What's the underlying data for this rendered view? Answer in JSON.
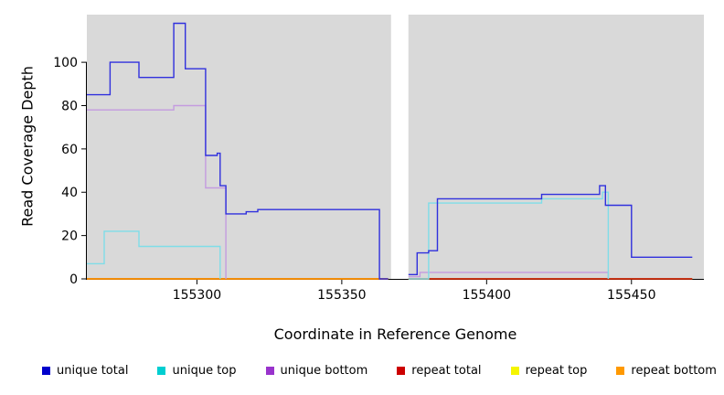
{
  "figure": {
    "bg": "#FFFFFF",
    "panel_bg": "#D9D9D9"
  },
  "chart_data": {
    "type": "line",
    "subtype": "step-coverage-plot",
    "title": "",
    "xlabel": "Coordinate in Reference Genome",
    "ylabel": "Read Coverage Depth",
    "xlim": [
      155262,
      155475
    ],
    "ylim": [
      0,
      122
    ],
    "x_ticks": [
      155300,
      155350,
      155400,
      155450
    ],
    "y_ticks": [
      0,
      20,
      40,
      60,
      80,
      100
    ],
    "grid": false,
    "legend_position": "bottom",
    "gap_region": {
      "from": 155367,
      "to": 155373,
      "note": "white vertical band with no coverage data"
    },
    "series": [
      {
        "name": "repeat top",
        "color": "#F2F200",
        "runs": [
          [
            155262,
            155366,
            0
          ],
          [
            155373,
            155471,
            0
          ]
        ]
      },
      {
        "name": "repeat total",
        "color": "#C00000",
        "runs": [
          [
            155262,
            155366,
            0
          ],
          [
            155373,
            155471,
            0
          ]
        ]
      },
      {
        "name": "repeat bottom",
        "color": "#FF9900",
        "runs": [
          [
            155262,
            155366,
            0
          ]
        ]
      },
      {
        "name": "unique bottom",
        "color": "#C49BE0",
        "runs": [
          [
            155262,
            155292,
            78
          ],
          [
            155292,
            155303,
            80
          ],
          [
            155303,
            155310,
            42
          ],
          [
            155310,
            155310,
            0
          ],
          [
            155373,
            155377,
            1
          ],
          [
            155377,
            155442,
            3
          ],
          [
            155442,
            155442,
            0
          ]
        ]
      },
      {
        "name": "unique top",
        "color": "#7FDDE8",
        "runs": [
          [
            155262,
            155268,
            7
          ],
          [
            155268,
            155280,
            22
          ],
          [
            155280,
            155308,
            15
          ],
          [
            155308,
            155308,
            0
          ],
          [
            155373,
            155380,
            0
          ],
          [
            155380,
            155419,
            35
          ],
          [
            155419,
            155440,
            37
          ],
          [
            155440,
            155442,
            40
          ],
          [
            155442,
            155442,
            0
          ]
        ]
      },
      {
        "name": "unique total",
        "color": "#3030DD",
        "runs": [
          [
            155262,
            155270,
            85
          ],
          [
            155270,
            155280,
            100
          ],
          [
            155280,
            155292,
            93
          ],
          [
            155292,
            155296,
            118
          ],
          [
            155296,
            155303,
            97
          ],
          [
            155303,
            155307,
            57
          ],
          [
            155307,
            155308,
            58
          ],
          [
            155308,
            155310,
            43
          ],
          [
            155310,
            155317,
            30
          ],
          [
            155317,
            155321,
            31
          ],
          [
            155321,
            155363,
            32
          ],
          [
            155363,
            155366,
            0
          ],
          [
            155373,
            155376,
            2
          ],
          [
            155376,
            155380,
            12
          ],
          [
            155380,
            155383,
            13
          ],
          [
            155383,
            155419,
            37
          ],
          [
            155419,
            155439,
            39
          ],
          [
            155439,
            155441,
            43
          ],
          [
            155441,
            155450,
            34
          ],
          [
            155450,
            155471,
            10
          ]
        ]
      }
    ],
    "legend": [
      {
        "label": "unique total",
        "color": "#0000CC"
      },
      {
        "label": "unique top",
        "color": "#00CED1"
      },
      {
        "label": "unique bottom",
        "color": "#9933CC"
      },
      {
        "label": "repeat total",
        "color": "#CC0000"
      },
      {
        "label": "repeat top",
        "color": "#F5F500"
      },
      {
        "label": "repeat bottom",
        "color": "#FF9900"
      }
    ]
  }
}
